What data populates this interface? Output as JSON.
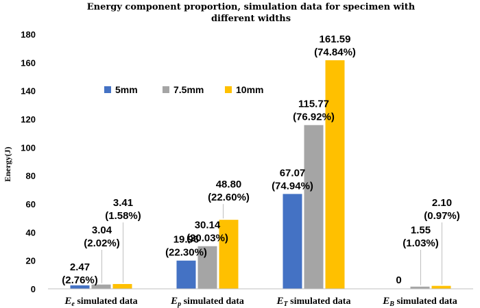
{
  "chart_data": {
    "type": "bar",
    "title_line1": "Energy component proportion, simulation data for specimen with",
    "title_line2": "different widths",
    "ylabel": "Energy(J)",
    "xlabel": "",
    "ylim": [
      0,
      180
    ],
    "yticks": [
      0,
      20,
      40,
      60,
      80,
      100,
      120,
      140,
      160,
      180
    ],
    "grid": false,
    "legend_position": "upper-left",
    "categories": [
      {
        "symbol": "E",
        "sub": "e",
        "rest": " simulated data"
      },
      {
        "symbol": "E",
        "sub": "p",
        "rest": " simulated data"
      },
      {
        "symbol": "E",
        "sub": "T",
        "rest": " simulated data"
      },
      {
        "symbol": "E",
        "sub": "B",
        "rest": " simulated data"
      }
    ],
    "series": [
      {
        "name": "5mm",
        "color": "#4472C4",
        "values": [
          2.47,
          19.96,
          67.07,
          0
        ],
        "labels": [
          "2.47",
          "19.96",
          "67.07",
          "0"
        ],
        "percents": [
          "(2.76%)",
          "(22.30%)",
          "(74.94%)",
          ""
        ]
      },
      {
        "name": "7.5mm",
        "color": "#A5A5A5",
        "values": [
          3.04,
          30.14,
          115.77,
          1.55
        ],
        "labels": [
          "3.04",
          "30.14",
          "115.77",
          "1.55"
        ],
        "percents": [
          "(2.02%)",
          "(20.03%)",
          "(76.92%)",
          "(1.03%)"
        ]
      },
      {
        "name": "10mm",
        "color": "#FFC000",
        "values": [
          3.41,
          48.8,
          161.59,
          2.1
        ],
        "labels": [
          "3.41",
          "48.80",
          "161.59",
          "2.10"
        ],
        "percents": [
          "(1.58%)",
          "(22.60%)",
          "(74.84%)",
          "(0.97%)"
        ]
      }
    ]
  }
}
